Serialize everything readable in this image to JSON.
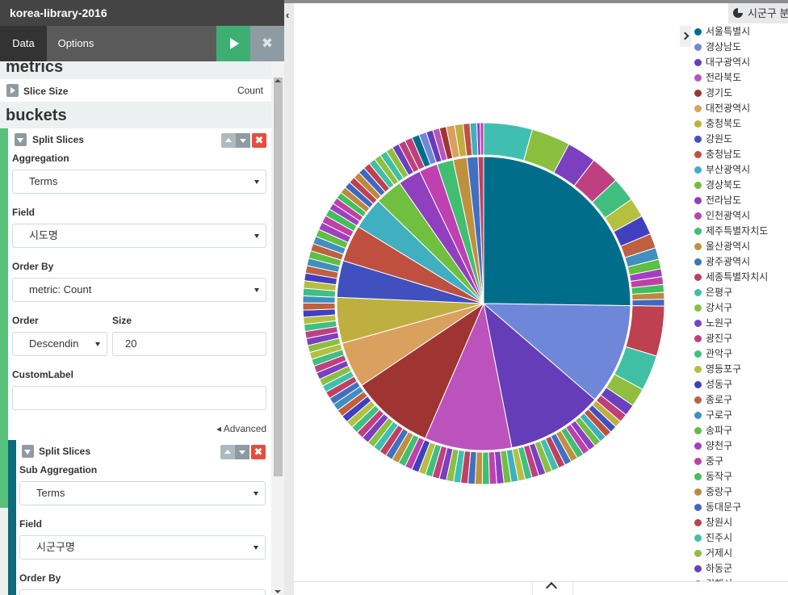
{
  "sidebar": {
    "title": "korea-library-2016",
    "tabs": {
      "data": "Data",
      "options": "Options"
    },
    "apply_icon": "play-icon",
    "discard_icon": "close-icon",
    "discard_label": "✖",
    "metrics": {
      "title": "metrics",
      "slice_size_label": "Slice Size",
      "slice_size_value": "Count"
    },
    "buckets": {
      "title": "buckets",
      "split1": {
        "label": "Split Slices",
        "aggregation_label": "Aggregation",
        "aggregation_value": "Terms",
        "field_label": "Field",
        "field_value": "시도명",
        "order_by_label": "Order By",
        "order_by_value": "metric: Count",
        "order_label": "Order",
        "order_value": "Descendin",
        "size_label": "Size",
        "size_value": "20",
        "custom_label": "CustomLabel",
        "custom_value": "",
        "advanced_label": "Advanced"
      },
      "split2": {
        "label": "Split Slices",
        "sub_aggregation_label": "Sub Aggregation",
        "sub_aggregation_value": "Terms",
        "field_label": "Field",
        "field_value": "시군구명",
        "order_by_label": "Order By"
      },
      "remove_label": "✖"
    }
  },
  "legend": {
    "header": "시군구 분",
    "items": [
      {
        "label": "서울특별시",
        "color": "#006e8a"
      },
      {
        "label": "경상남도",
        "color": "#6f87d8"
      },
      {
        "label": "대구광역시",
        "color": "#663db8"
      },
      {
        "label": "전라북도",
        "color": "#bc52bc"
      },
      {
        "label": "경기도",
        "color": "#9e3533"
      },
      {
        "label": "대전광역시",
        "color": "#daa05d"
      },
      {
        "label": "충청북도",
        "color": "#bfaf40"
      },
      {
        "label": "강원도",
        "color": "#4050bf"
      },
      {
        "label": "충청남도",
        "color": "#bf5040"
      },
      {
        "label": "부산광역시",
        "color": "#40afbf"
      },
      {
        "label": "경상북도",
        "color": "#70bf40"
      },
      {
        "label": "전라남도",
        "color": "#9040bf"
      },
      {
        "label": "인천광역시",
        "color": "#bf40af"
      },
      {
        "label": "제주특별자치도",
        "color": "#40bf70"
      },
      {
        "label": "울산광역시",
        "color": "#bf9040"
      },
      {
        "label": "광주광역시",
        "color": "#4070bf"
      },
      {
        "label": "세종특별자치시",
        "color": "#bf4060"
      },
      {
        "label": "은평구",
        "color": "#40bfb0"
      },
      {
        "label": "강서구",
        "color": "#8abf40"
      },
      {
        "label": "노원구",
        "color": "#7a40bf"
      },
      {
        "label": "광진구",
        "color": "#bf4080"
      },
      {
        "label": "관악구",
        "color": "#40bf80"
      },
      {
        "label": "영등포구",
        "color": "#b5bf40"
      },
      {
        "label": "성동구",
        "color": "#4040bf"
      },
      {
        "label": "종로구",
        "color": "#bf6040"
      },
      {
        "label": "구로구",
        "color": "#4090bf"
      },
      {
        "label": "송파구",
        "color": "#5fbf40"
      },
      {
        "label": "양천구",
        "color": "#a040bf"
      },
      {
        "label": "중구",
        "color": "#bf40a5"
      },
      {
        "label": "동작구",
        "color": "#40bf5a"
      },
      {
        "label": "중랑구",
        "color": "#bf8840"
      },
      {
        "label": "동대문구",
        "color": "#4068bf"
      },
      {
        "label": "창원시",
        "color": "#bf4050"
      },
      {
        "label": "진주시",
        "color": "#40bfa5"
      },
      {
        "label": "거제시",
        "color": "#90bf40"
      },
      {
        "label": "하동군",
        "color": "#6a40bf"
      },
      {
        "label": "김해시",
        "color": "#bf4078"
      }
    ]
  },
  "chart_data": {
    "type": "pie",
    "inner": {
      "name": "시도명",
      "labels": [
        "서울특별시",
        "경상남도",
        "대구광역시",
        "전라북도",
        "경기도",
        "대전광역시",
        "충청북도",
        "강원도",
        "충청남도",
        "부산광역시",
        "경상북도",
        "전라남도",
        "인천광역시",
        "제주특별자치도",
        "울산광역시",
        "광주광역시",
        "세종특별자치시"
      ],
      "values": [
        25,
        11,
        10.5,
        9.5,
        9,
        5,
        5,
        4,
        4,
        3.5,
        3,
        2.5,
        2,
        1.8,
        1.5,
        1.2,
        0.6
      ]
    },
    "outer": {
      "name": "시군구명",
      "labels": [
        "은평구",
        "강서구",
        "노원구",
        "광진구",
        "관악구",
        "영등포구",
        "성동구",
        "종로구",
        "구로구",
        "송파구",
        "양천구",
        "중구",
        "동작구",
        "중랑구",
        "동대문구",
        "창원시",
        "진주시",
        "거제시",
        "하동군",
        "김해시"
      ],
      "values": [
        5,
        4,
        3,
        3,
        2.5,
        2,
        2,
        1.5,
        1.2,
        1,
        0.8,
        0.8,
        0.8,
        0.7,
        0.7,
        3.5,
        2.5,
        1.3,
        0.8,
        0.6
      ]
    },
    "legend": "right"
  }
}
